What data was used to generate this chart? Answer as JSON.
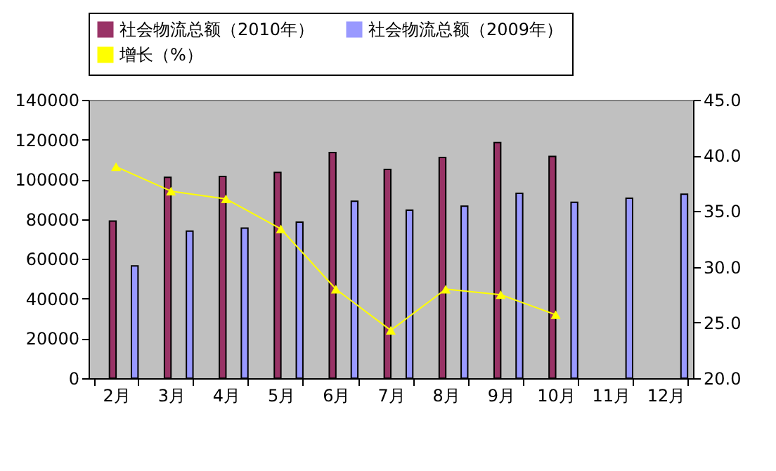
{
  "chart_data": {
    "type": "bar",
    "categories": [
      "2月",
      "3月",
      "4月",
      "5月",
      "6月",
      "7月",
      "8月",
      "9月",
      "10月",
      "11月",
      "12月"
    ],
    "series": [
      {
        "name": "社会物流总额（2010年）",
        "color": "#993366",
        "values": [
          79000,
          101000,
          101500,
          103500,
          113500,
          105000,
          111000,
          118500,
          111500,
          null,
          null
        ]
      },
      {
        "name": "社会物流总额（2009年）",
        "color": "#9999ff",
        "values": [
          56500,
          74000,
          75500,
          78500,
          89000,
          84500,
          86500,
          93000,
          88500,
          90500,
          92500
        ]
      },
      {
        "name": "增长（%）",
        "color": "#ffff00",
        "type": "line",
        "axis": "y2",
        "marker": "triangle",
        "values": [
          39.0,
          36.8,
          36.1,
          33.4,
          28.0,
          24.3,
          28.0,
          27.5,
          25.7,
          null,
          null
        ]
      }
    ],
    "ylim": [
      0,
      140000
    ],
    "yticks": [
      0,
      20000,
      40000,
      60000,
      80000,
      100000,
      120000,
      140000
    ],
    "y2lim": [
      20,
      45
    ],
    "y2ticks": [
      {
        "value": 20,
        "label": "20.0"
      },
      {
        "value": 25,
        "label": "25.0"
      },
      {
        "value": 30,
        "label": "30.0"
      },
      {
        "value": 35,
        "label": "35.0"
      },
      {
        "value": 40,
        "label": "40.0"
      },
      {
        "value": 45,
        "label": "45.0"
      }
    ],
    "legend": "top",
    "grid": false
  }
}
